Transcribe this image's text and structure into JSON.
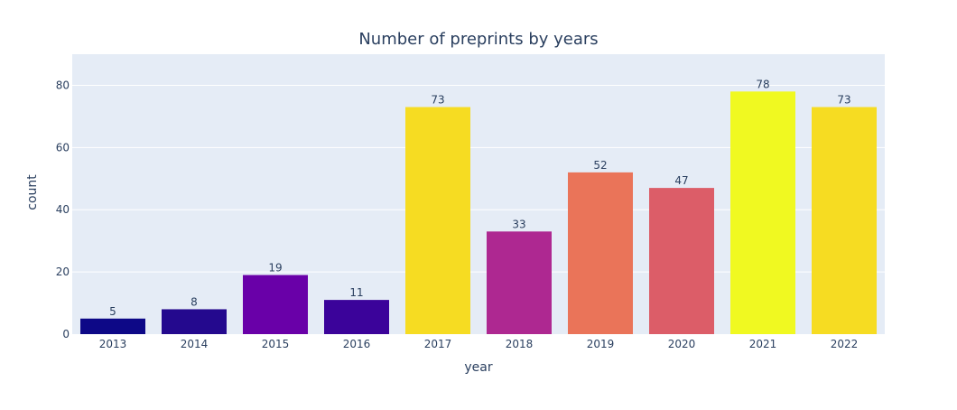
{
  "chart_data": {
    "type": "bar",
    "title": "Number of preprints by years",
    "xlabel": "year",
    "ylabel": "count",
    "categories": [
      "2013",
      "2014",
      "2015",
      "2016",
      "2017",
      "2018",
      "2019",
      "2020",
      "2021",
      "2022"
    ],
    "values": [
      5,
      8,
      19,
      11,
      73,
      33,
      52,
      47,
      78,
      73
    ],
    "data_labels": [
      "5",
      "8",
      "19",
      "11",
      "73",
      "33",
      "52",
      "47",
      "78",
      "73"
    ],
    "colors": [
      "#0d0887",
      "#24098e",
      "#6900a8",
      "#3b039a",
      "#f6dc22",
      "#ae2891",
      "#ea7459",
      "#dc5d68",
      "#f0f921",
      "#f6dc22"
    ],
    "ylim": [
      0,
      90
    ],
    "yticks": [
      0,
      20,
      40,
      60,
      80
    ],
    "ytick_labels": [
      "0",
      "20",
      "40",
      "60",
      "80"
    ],
    "grid": true,
    "legend": "none",
    "colors_theme": {
      "plot_bg": "#e5ecf6",
      "grid": "#ffffff",
      "text": "#2a3f5f",
      "tick_text": "#2a3f5f"
    }
  }
}
